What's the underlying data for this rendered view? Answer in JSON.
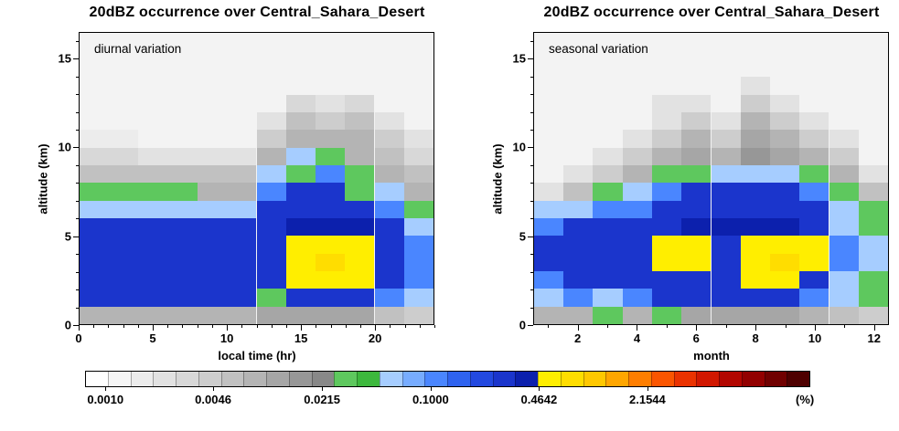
{
  "chart_data": {
    "type": "heatmap",
    "panels": [
      {
        "title": "20dBZ occurrence over Central_Sahara_Desert",
        "inner_label": "diurnal variation",
        "xlabel": "local time (hr)",
        "ylabel": "altitude (km)",
        "x_min": 0,
        "x_max": 24,
        "x_major_ticks": [
          0,
          5,
          10,
          15,
          20
        ],
        "x_minor_step": 1,
        "y_min": 0,
        "y_max": 16.5,
        "y_major_ticks": [
          0,
          5,
          10,
          15
        ],
        "y_minor_step": 1,
        "columns": 12,
        "row_height_km": 1,
        "values_rows_bottom_up": [
          [
            0.008,
            0.008,
            0.008,
            0.008,
            0.008,
            0.008,
            0.012,
            0.012,
            0.012,
            0.012,
            0.006,
            0.004
          ],
          [
            0.25,
            0.25,
            0.25,
            0.25,
            0.25,
            0.25,
            0.03,
            0.25,
            0.25,
            0.25,
            0.12,
            0.06
          ],
          [
            0.25,
            0.25,
            0.25,
            0.25,
            0.25,
            0.25,
            0.25,
            0.6,
            0.6,
            0.6,
            0.25,
            0.12
          ],
          [
            0.25,
            0.25,
            0.25,
            0.25,
            0.25,
            0.25,
            0.25,
            0.6,
            0.8,
            0.6,
            0.25,
            0.12
          ],
          [
            0.25,
            0.25,
            0.25,
            0.25,
            0.25,
            0.25,
            0.25,
            0.6,
            0.6,
            0.6,
            0.25,
            0.12
          ],
          [
            0.25,
            0.25,
            0.25,
            0.25,
            0.25,
            0.25,
            0.25,
            0.4,
            0.4,
            0.4,
            0.25,
            0.06
          ],
          [
            0.06,
            0.06,
            0.06,
            0.06,
            0.06,
            0.06,
            0.25,
            0.25,
            0.25,
            0.25,
            0.12,
            0.03
          ],
          [
            0.03,
            0.03,
            0.03,
            0.03,
            0.008,
            0.008,
            0.12,
            0.25,
            0.25,
            0.03,
            0.06,
            0.008
          ],
          [
            0.006,
            0.006,
            0.006,
            0.006,
            0.006,
            0.006,
            0.06,
            0.03,
            0.12,
            0.03,
            0.008,
            0.006
          ],
          [
            0.003,
            0.003,
            0.002,
            0.002,
            0.002,
            0.002,
            0.008,
            0.06,
            0.03,
            0.008,
            0.006,
            0.003
          ],
          [
            0.0015,
            0.0015,
            0,
            0,
            0,
            0,
            0.004,
            0.008,
            0.008,
            0.008,
            0.004,
            0.002
          ],
          [
            0,
            0,
            0,
            0,
            0,
            0,
            0.002,
            0.006,
            0.004,
            0.006,
            0.002,
            0
          ],
          [
            0,
            0,
            0,
            0,
            0,
            0,
            0,
            0.003,
            0.002,
            0.003,
            0,
            0
          ],
          [
            0,
            0,
            0,
            0,
            0,
            0,
            0,
            0,
            0,
            0,
            0,
            0
          ]
        ]
      },
      {
        "title": "20dBZ occurrence over Central_Sahara_Desert",
        "inner_label": "seasonal variation",
        "xlabel": "month",
        "ylabel": "altitude (km)",
        "x_min": 0.5,
        "x_max": 12.5,
        "x_major_ticks": [
          2,
          4,
          6,
          8,
          10,
          12
        ],
        "x_minor_step": 1,
        "y_min": 0,
        "y_max": 16.5,
        "y_major_ticks": [
          0,
          5,
          10,
          15
        ],
        "y_minor_step": 1,
        "columns": 12,
        "row_height_km": 1,
        "values_rows_bottom_up": [
          [
            0.008,
            0.008,
            0.03,
            0.008,
            0.03,
            0.012,
            0.012,
            0.012,
            0.012,
            0.008,
            0.006,
            0.004
          ],
          [
            0.06,
            0.12,
            0.06,
            0.12,
            0.25,
            0.25,
            0.25,
            0.25,
            0.25,
            0.12,
            0.06,
            0.03
          ],
          [
            0.12,
            0.25,
            0.25,
            0.25,
            0.25,
            0.25,
            0.25,
            0.6,
            0.6,
            0.25,
            0.06,
            0.03
          ],
          [
            0.25,
            0.25,
            0.25,
            0.25,
            0.6,
            0.6,
            0.25,
            0.6,
            0.8,
            0.6,
            0.12,
            0.06
          ],
          [
            0.25,
            0.25,
            0.25,
            0.25,
            0.6,
            0.6,
            0.25,
            0.6,
            0.6,
            0.6,
            0.12,
            0.06
          ],
          [
            0.12,
            0.25,
            0.25,
            0.25,
            0.25,
            0.4,
            0.4,
            0.4,
            0.4,
            0.25,
            0.06,
            0.03
          ],
          [
            0.06,
            0.06,
            0.12,
            0.12,
            0.25,
            0.25,
            0.25,
            0.25,
            0.25,
            0.25,
            0.06,
            0.03
          ],
          [
            0.002,
            0.006,
            0.03,
            0.06,
            0.12,
            0.25,
            0.25,
            0.25,
            0.25,
            0.12,
            0.03,
            0.006
          ],
          [
            0,
            0.002,
            0.004,
            0.008,
            0.03,
            0.03,
            0.06,
            0.06,
            0.06,
            0.03,
            0.008,
            0.002
          ],
          [
            0,
            0,
            0.002,
            0.004,
            0.008,
            0.012,
            0.008,
            0.015,
            0.012,
            0.008,
            0.004,
            0
          ],
          [
            0,
            0,
            0,
            0.002,
            0.004,
            0.008,
            0.004,
            0.012,
            0.008,
            0.004,
            0.002,
            0
          ],
          [
            0,
            0,
            0,
            0,
            0.002,
            0.004,
            0.002,
            0.008,
            0.004,
            0.002,
            0,
            0
          ],
          [
            0,
            0,
            0,
            0,
            0.002,
            0.002,
            0,
            0.004,
            0.002,
            0,
            0,
            0
          ],
          [
            0,
            0,
            0,
            0,
            0,
            0,
            0,
            0.002,
            0,
            0,
            0,
            0
          ]
        ]
      }
    ],
    "colorbar": {
      "unit_label": "(%)",
      "scale": "log10",
      "log10_min": -3.125,
      "log10_max": 1.335,
      "tick_values": [
        0.001,
        0.0046,
        0.0215,
        0.1,
        0.4642,
        2.1544
      ],
      "tick_labels": [
        "0.0010",
        "0.0046",
        "0.0215",
        "0.1000",
        "0.4642",
        "2.1544"
      ],
      "colors": [
        "#ffffff",
        "#f5f5f5",
        "#ececec",
        "#e2e2e2",
        "#d8d8d8",
        "#cdcdcd",
        "#c1c1c1",
        "#b4b4b4",
        "#a6a6a6",
        "#979797",
        "#888888",
        "#5ec85e",
        "#3db83d",
        "#a6cdff",
        "#77acff",
        "#4a86ff",
        "#2f63ef",
        "#2349e0",
        "#1b35cc",
        "#0c20ad",
        "#ffee00",
        "#ffdd00",
        "#ffc800",
        "#ffa600",
        "#ff7e00",
        "#fb5500",
        "#ea3200",
        "#d11700",
        "#b20600",
        "#920000",
        "#700000",
        "#4e0000"
      ]
    }
  }
}
